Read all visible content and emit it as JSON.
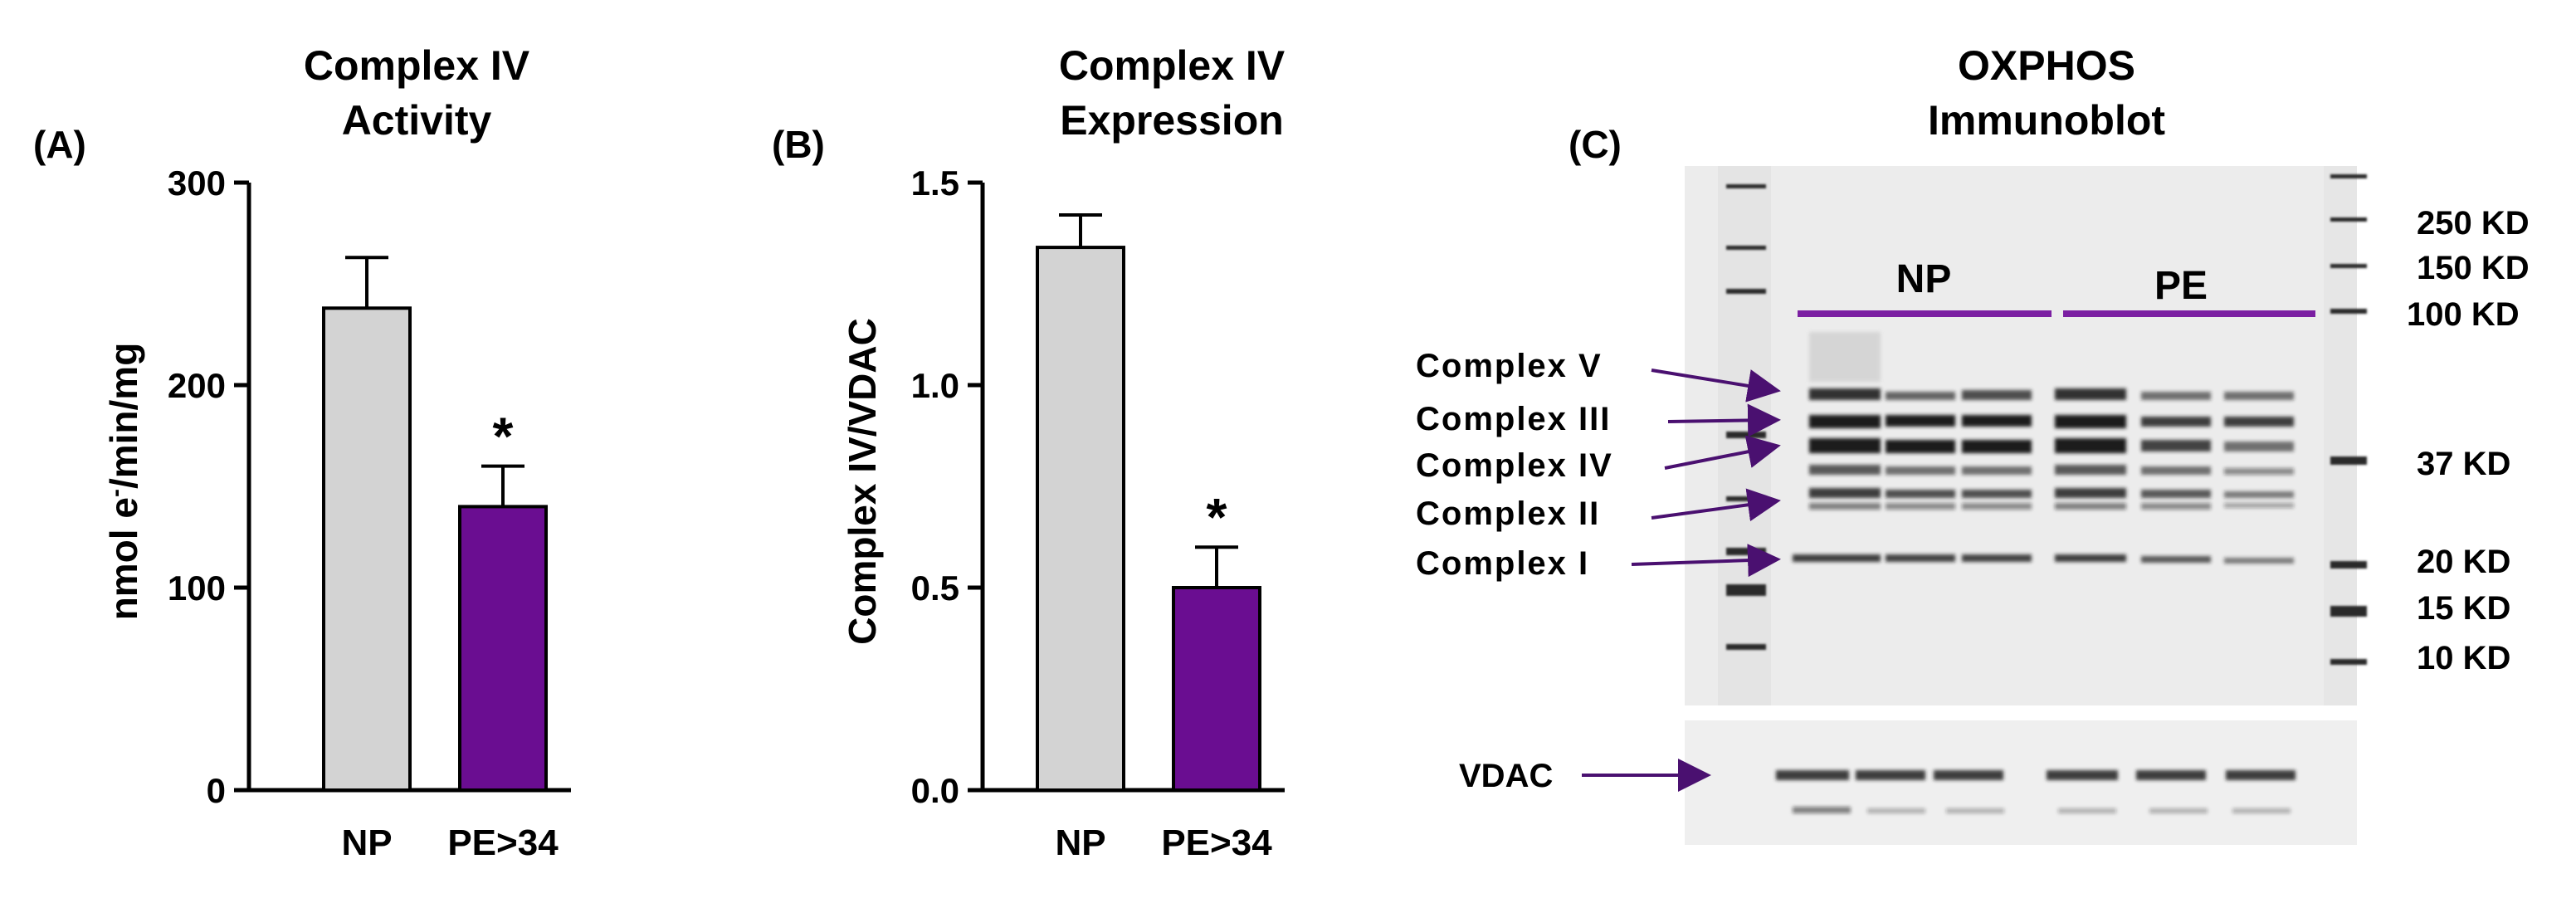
{
  "chart_data": [
    {
      "panel_label": "(A)",
      "type": "bar",
      "title": [
        "Complex IV",
        "Activity"
      ],
      "ylabel_main": "nmol e",
      "ylabel_sup": "-",
      "ylabel_rest": "/min/mg",
      "xlabel": "",
      "ylim": [
        0,
        300
      ],
      "yticks": [
        0,
        100,
        200,
        300
      ],
      "ytick_labels": [
        "0",
        "100",
        "200",
        "300"
      ],
      "categories": [
        "NP",
        "PE>34"
      ],
      "values": [
        238,
        140
      ],
      "errors": [
        25,
        20
      ],
      "colors": [
        "#d3d3d3",
        "#6a0d91"
      ],
      "annotations": [
        "",
        "*"
      ]
    },
    {
      "panel_label": "(B)",
      "type": "bar",
      "title": [
        "Complex IV",
        "Expression"
      ],
      "ylabel": "Complex IV/VDAC",
      "xlabel": "",
      "ylim": [
        0,
        1.5
      ],
      "yticks": [
        0,
        0.5,
        1.0,
        1.5
      ],
      "ytick_labels": [
        "0.0",
        "0.5",
        "1.0",
        "1.5"
      ],
      "categories": [
        "NP",
        "PE>34"
      ],
      "values": [
        1.34,
        0.5
      ],
      "errors": [
        0.08,
        0.1
      ],
      "colors": [
        "#d3d3d3",
        "#6a0d91"
      ],
      "annotations": [
        "",
        "*"
      ]
    }
  ],
  "immunoblot": {
    "panel_label": "(C)",
    "title": [
      "OXPHOS",
      "Immunoblot"
    ],
    "groups": [
      "NP",
      "PE"
    ],
    "group_color": "#7b1fa2",
    "complex_labels": [
      "Complex V",
      "Complex III",
      "Complex IV",
      "Complex II",
      "Complex I"
    ],
    "kd_labels": [
      "250 KD",
      "150 KD",
      "100 KD",
      "37 KD",
      "20 KD",
      "15 KD",
      "10 KD"
    ],
    "vdac_label": "VDAC",
    "arrow_color": "#4a1070"
  }
}
